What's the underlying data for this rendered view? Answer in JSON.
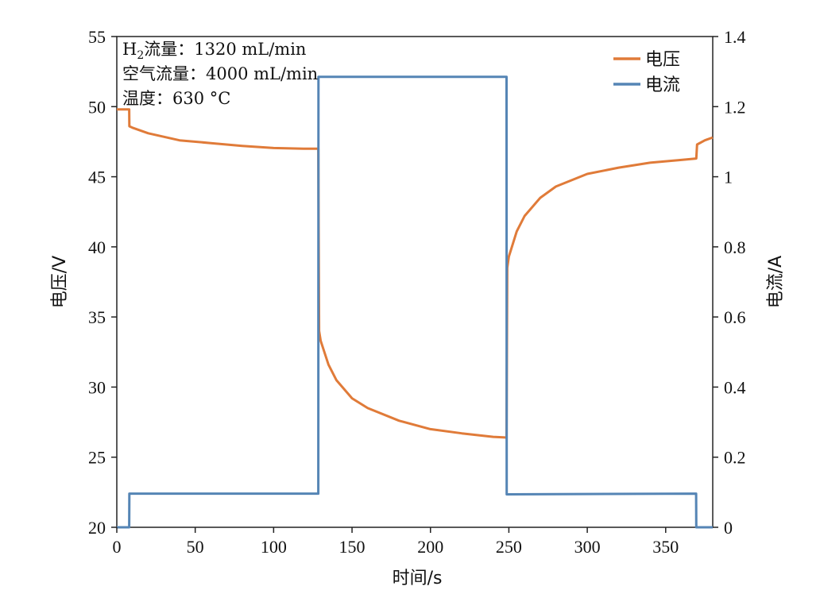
{
  "chart_data": {
    "type": "line",
    "xlabel": "时间/s",
    "ylabel_left": "电压/V",
    "ylabel_right": "电流/A",
    "xlim": [
      0,
      380
    ],
    "ylim_left": [
      20,
      55
    ],
    "ylim_right": [
      0,
      1.4
    ],
    "x_ticks": [
      0,
      50,
      100,
      150,
      200,
      250,
      300,
      350
    ],
    "y_left_ticks": [
      20,
      25,
      30,
      35,
      40,
      45,
      50,
      55
    ],
    "y_right_ticks": [
      "0",
      "0.2",
      "0.4",
      "0.6",
      "0.8",
      "1",
      "1.2",
      "1.4"
    ],
    "grid": false,
    "legend_position": "top-right",
    "annotations": {
      "h2_prefix": "H",
      "h2_sub": "2",
      "h2_rest": "流量：1320 mL/min",
      "air": "空气流量：4000 mL/min",
      "temp": "温度：630 °C"
    },
    "series": [
      {
        "name": "电压",
        "axis": "left",
        "color": "#e07b39",
        "x": [
          0,
          7.9,
          8,
          10,
          20,
          40,
          60,
          80,
          100,
          120,
          128.5,
          129,
          130,
          135,
          140,
          150,
          160,
          180,
          200,
          220,
          240,
          248.5,
          249,
          250,
          255,
          260,
          270,
          280,
          300,
          320,
          340,
          360,
          369.5,
          370,
          375,
          380
        ],
        "y": [
          49.8,
          49.8,
          48.6,
          48.5,
          48.1,
          47.6,
          47.4,
          47.2,
          47.05,
          47.0,
          47.0,
          34.0,
          33.3,
          31.6,
          30.5,
          29.2,
          28.5,
          27.6,
          27.0,
          26.7,
          26.45,
          26.4,
          38.5,
          39.3,
          41.1,
          42.2,
          43.5,
          44.3,
          45.2,
          45.65,
          46.0,
          46.2,
          46.3,
          47.3,
          47.6,
          47.8
        ]
      },
      {
        "name": "电流",
        "axis": "right",
        "color": "#5585b5",
        "x": [
          0,
          7.9,
          8,
          128.5,
          128.6,
          248.5,
          248.6,
          369.4,
          369.5,
          380
        ],
        "y": [
          0,
          0,
          0.096,
          0.096,
          1.285,
          1.285,
          0.094,
          0.096,
          0,
          0
        ]
      }
    ]
  }
}
